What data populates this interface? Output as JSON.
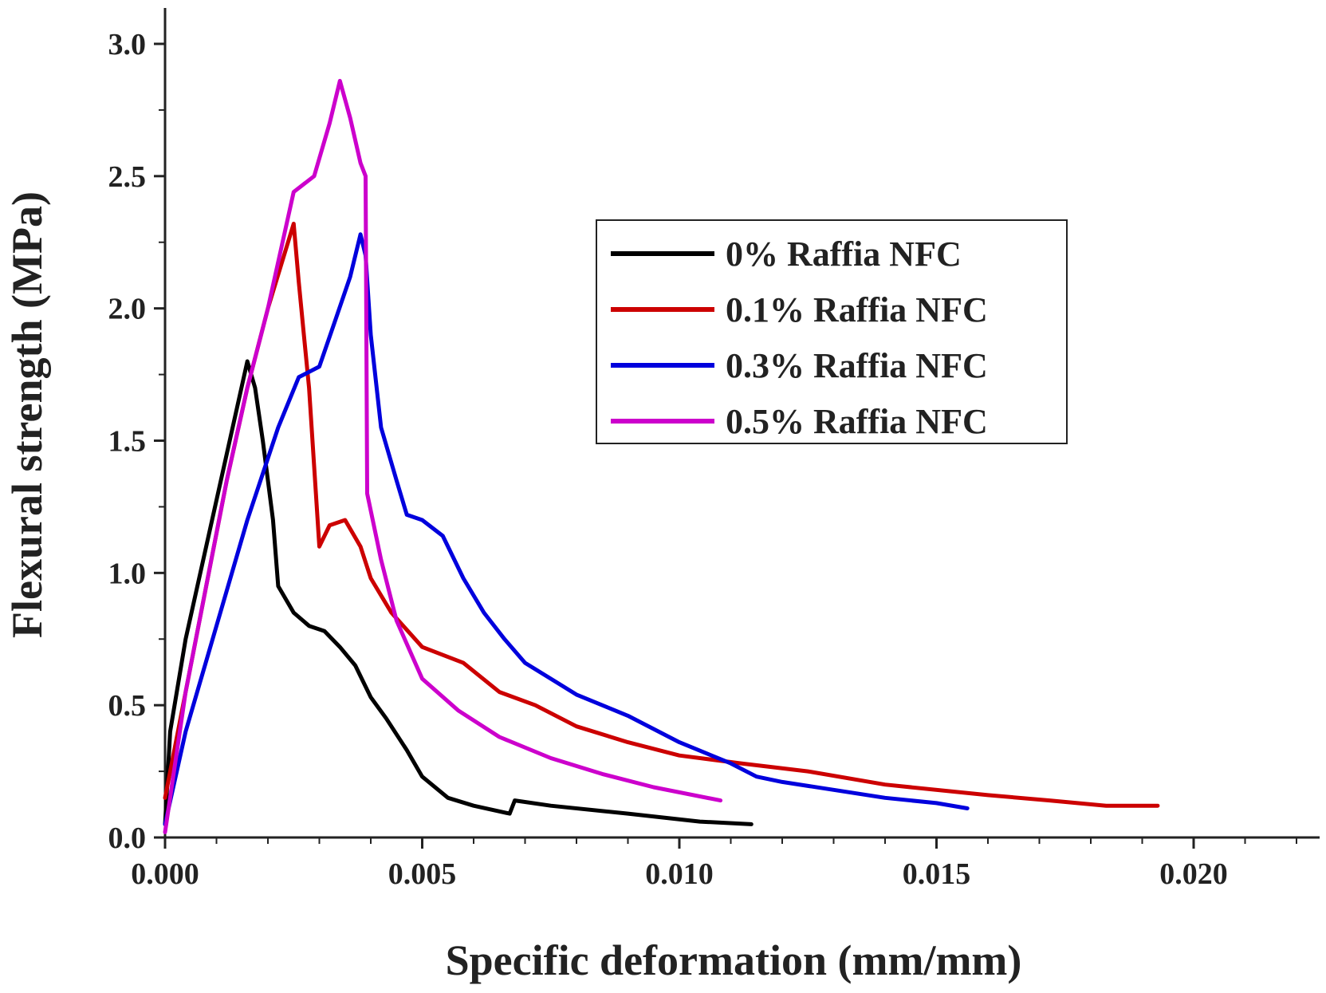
{
  "chart_data": {
    "type": "line",
    "title": "",
    "xlabel": "Specific deformation (mm/mm)",
    "ylabel": "Flexural strength (MPa)",
    "xlim": [
      0,
      0.0225
    ],
    "ylim": [
      0,
      3.0
    ],
    "xticks": [
      "0.000",
      "0.005",
      "0.010",
      "0.015",
      "0.020"
    ],
    "xtick_values": [
      0,
      0.005,
      0.01,
      0.015,
      0.02
    ],
    "yticks": [
      "0.0",
      "0.5",
      "1.0",
      "1.5",
      "2.0",
      "2.5",
      "3.0"
    ],
    "ytick_values": [
      0,
      0.5,
      1.0,
      1.5,
      2.0,
      2.5,
      3.0
    ],
    "legend_position": "upper-right",
    "series": [
      {
        "name": "0% Raffia NFC",
        "color": "#000000",
        "points": [
          [
            0,
            0.05
          ],
          [
            0.0001,
            0.4
          ],
          [
            0.0004,
            0.75
          ],
          [
            0.0008,
            1.1
          ],
          [
            0.0012,
            1.45
          ],
          [
            0.0016,
            1.8
          ],
          [
            0.00175,
            1.7
          ],
          [
            0.0019,
            1.5
          ],
          [
            0.0021,
            1.2
          ],
          [
            0.0022,
            0.95
          ],
          [
            0.0025,
            0.85
          ],
          [
            0.0028,
            0.8
          ],
          [
            0.0031,
            0.78
          ],
          [
            0.0034,
            0.72
          ],
          [
            0.0037,
            0.65
          ],
          [
            0.004,
            0.53
          ],
          [
            0.0043,
            0.45
          ],
          [
            0.0047,
            0.33
          ],
          [
            0.005,
            0.23
          ],
          [
            0.0055,
            0.15
          ],
          [
            0.006,
            0.12
          ],
          [
            0.0067,
            0.09
          ],
          [
            0.0068,
            0.14
          ],
          [
            0.0075,
            0.12
          ],
          [
            0.009,
            0.09
          ],
          [
            0.0104,
            0.06
          ],
          [
            0.0114,
            0.05
          ]
        ]
      },
      {
        "name": "0.1% Raffia NFC",
        "color": "#cc0000",
        "points": [
          [
            0,
            0.15
          ],
          [
            0.0004,
            0.55
          ],
          [
            0.0008,
            0.95
          ],
          [
            0.0012,
            1.35
          ],
          [
            0.0016,
            1.7
          ],
          [
            0.002,
            2.0
          ],
          [
            0.0025,
            2.32
          ],
          [
            0.0026,
            2.1
          ],
          [
            0.0027,
            1.9
          ],
          [
            0.0028,
            1.7
          ],
          [
            0.003,
            1.1
          ],
          [
            0.0032,
            1.18
          ],
          [
            0.0035,
            1.2
          ],
          [
            0.0038,
            1.1
          ],
          [
            0.004,
            0.98
          ],
          [
            0.0044,
            0.85
          ],
          [
            0.005,
            0.72
          ],
          [
            0.0058,
            0.66
          ],
          [
            0.0065,
            0.55
          ],
          [
            0.0072,
            0.5
          ],
          [
            0.008,
            0.42
          ],
          [
            0.009,
            0.36
          ],
          [
            0.01,
            0.31
          ],
          [
            0.0112,
            0.28
          ],
          [
            0.0125,
            0.25
          ],
          [
            0.014,
            0.2
          ],
          [
            0.016,
            0.16
          ],
          [
            0.0172,
            0.14
          ],
          [
            0.0183,
            0.12
          ],
          [
            0.0193,
            0.12
          ]
        ]
      },
      {
        "name": "0.3% Raffia NFC",
        "color": "#0000dd",
        "points": [
          [
            0,
            0.05
          ],
          [
            0.0004,
            0.4
          ],
          [
            0.001,
            0.8
          ],
          [
            0.0016,
            1.2
          ],
          [
            0.0022,
            1.55
          ],
          [
            0.0026,
            1.74
          ],
          [
            0.003,
            1.78
          ],
          [
            0.0033,
            1.95
          ],
          [
            0.0036,
            2.12
          ],
          [
            0.0038,
            2.28
          ],
          [
            0.0039,
            2.2
          ],
          [
            0.004,
            1.9
          ],
          [
            0.0042,
            1.55
          ],
          [
            0.0045,
            1.35
          ],
          [
            0.0047,
            1.22
          ],
          [
            0.005,
            1.2
          ],
          [
            0.0054,
            1.14
          ],
          [
            0.0058,
            0.98
          ],
          [
            0.0062,
            0.85
          ],
          [
            0.0066,
            0.75
          ],
          [
            0.007,
            0.66
          ],
          [
            0.0075,
            0.6
          ],
          [
            0.008,
            0.54
          ],
          [
            0.009,
            0.46
          ],
          [
            0.01,
            0.36
          ],
          [
            0.011,
            0.28
          ],
          [
            0.0115,
            0.23
          ],
          [
            0.012,
            0.21
          ],
          [
            0.013,
            0.18
          ],
          [
            0.014,
            0.15
          ],
          [
            0.015,
            0.13
          ],
          [
            0.0156,
            0.11
          ]
        ]
      },
      {
        "name": "0.5% Raffia NFC",
        "color": "#cc00cc",
        "points": [
          [
            0,
            0.02
          ],
          [
            0.0004,
            0.55
          ],
          [
            0.0008,
            0.95
          ],
          [
            0.0012,
            1.35
          ],
          [
            0.0016,
            1.7
          ],
          [
            0.002,
            2.0
          ],
          [
            0.0025,
            2.44
          ],
          [
            0.0029,
            2.5
          ],
          [
            0.0032,
            2.7
          ],
          [
            0.0034,
            2.86
          ],
          [
            0.0036,
            2.72
          ],
          [
            0.0038,
            2.55
          ],
          [
            0.0039,
            2.5
          ],
          [
            0.00393,
            1.3
          ],
          [
            0.0042,
            1.05
          ],
          [
            0.0045,
            0.82
          ],
          [
            0.005,
            0.6
          ],
          [
            0.0057,
            0.48
          ],
          [
            0.0065,
            0.38
          ],
          [
            0.0075,
            0.3
          ],
          [
            0.0085,
            0.24
          ],
          [
            0.0095,
            0.19
          ],
          [
            0.0108,
            0.14
          ]
        ]
      }
    ]
  }
}
